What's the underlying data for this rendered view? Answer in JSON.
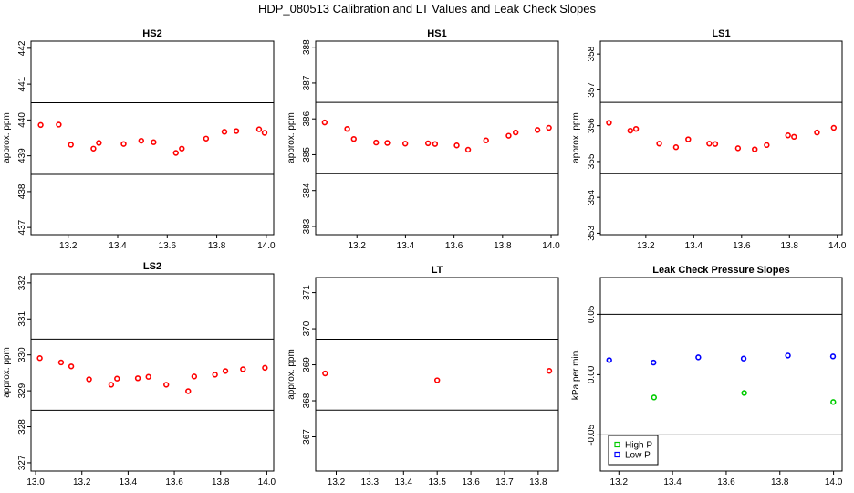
{
  "title": "HDP_080513 Calibration and LT Values and Leak Check Slopes",
  "chart_data": [
    {
      "type": "scatter",
      "title": "HS2",
      "ylabel": "approx. ppm",
      "xlabel": "",
      "xlim": [
        13.05,
        14.03
      ],
      "ylim": [
        436.8,
        442.2
      ],
      "x_ticks": [
        "13.2",
        "13.4",
        "13.6",
        "13.8",
        "14.0"
      ],
      "y_ticks": [
        "437",
        "438",
        "439",
        "440",
        "441",
        "442"
      ],
      "hlines": [
        440.48,
        438.48
      ],
      "series": [
        {
          "color": "#ff0000",
          "x": [
            13.089,
            13.162,
            13.211,
            13.302,
            13.324,
            13.424,
            13.495,
            13.545,
            13.635,
            13.659,
            13.757,
            13.831,
            13.879,
            13.971,
            13.993
          ],
          "y": [
            439.86,
            439.87,
            439.31,
            439.2,
            439.36,
            439.33,
            439.42,
            439.38,
            439.08,
            439.2,
            439.48,
            439.67,
            439.69,
            439.74,
            439.64
          ]
        }
      ]
    },
    {
      "type": "scatter",
      "title": "HS1",
      "ylabel": "approx. ppm",
      "xlabel": "",
      "xlim": [
        13.03,
        14.03
      ],
      "ylim": [
        382.77,
        388.17
      ],
      "x_ticks": [
        "13.2",
        "13.4",
        "13.6",
        "13.8",
        "14.0"
      ],
      "y_ticks": [
        "383",
        "384",
        "385",
        "386",
        "387",
        "388"
      ],
      "hlines": [
        386.46,
        384.47
      ],
      "series": [
        {
          "color": "#ff0000",
          "x": [
            13.067,
            13.16,
            13.187,
            13.279,
            13.325,
            13.399,
            13.493,
            13.522,
            13.611,
            13.658,
            13.732,
            13.825,
            13.854,
            13.944,
            13.991
          ],
          "y": [
            385.9,
            385.72,
            385.44,
            385.34,
            385.33,
            385.31,
            385.32,
            385.3,
            385.26,
            385.14,
            385.4,
            385.53,
            385.62,
            385.69,
            385.75
          ]
        }
      ]
    },
    {
      "type": "scatter",
      "title": "LS1",
      "ylabel": "approx. ppm",
      "xlabel": "",
      "xlim": [
        13.01,
        14.02
      ],
      "ylim": [
        352.96,
        358.36
      ],
      "x_ticks": [
        "13.2",
        "13.4",
        "13.6",
        "13.8",
        "14.0"
      ],
      "y_ticks": [
        "353",
        "354",
        "355",
        "356",
        "357",
        "358"
      ],
      "hlines": [
        356.65,
        354.66
      ],
      "series": [
        {
          "color": "#ff0000",
          "x": [
            13.046,
            13.135,
            13.159,
            13.256,
            13.326,
            13.377,
            13.465,
            13.49,
            13.585,
            13.655,
            13.705,
            13.794,
            13.819,
            13.915,
            13.985
          ],
          "y": [
            356.08,
            355.86,
            355.91,
            355.5,
            355.4,
            355.62,
            355.5,
            355.49,
            355.37,
            355.34,
            355.46,
            355.73,
            355.69,
            355.81,
            355.94
          ]
        }
      ]
    },
    {
      "type": "scatter",
      "title": "LS2",
      "ylabel": "approx. ppm",
      "xlabel": "",
      "xlim": [
        12.98,
        14.03
      ],
      "ylim": [
        326.77,
        332.25
      ],
      "x_ticks": [
        "13.0",
        "13.2",
        "13.4",
        "13.6",
        "13.8",
        "14.0"
      ],
      "y_ticks": [
        "327",
        "328",
        "329",
        "330",
        "331",
        "332"
      ],
      "hlines": [
        330.44,
        328.46
      ],
      "series": [
        {
          "color": "#ff0000",
          "x": [
            13.018,
            13.11,
            13.154,
            13.231,
            13.327,
            13.352,
            13.442,
            13.488,
            13.565,
            13.66,
            13.686,
            13.776,
            13.821,
            13.897,
            13.992
          ],
          "y": [
            329.91,
            329.79,
            329.68,
            329.32,
            329.17,
            329.34,
            329.35,
            329.39,
            329.17,
            328.99,
            329.4,
            329.45,
            329.55,
            329.6,
            329.64
          ]
        }
      ]
    },
    {
      "type": "scatter",
      "title": "LT",
      "ylabel": "approx. ppm",
      "xlabel": "",
      "xlim": [
        13.139,
        13.86
      ],
      "ylim": [
        366.05,
        371.42
      ],
      "x_ticks": [
        "13.2",
        "13.3",
        "13.4",
        "13.5",
        "13.6",
        "13.7",
        "13.8"
      ],
      "y_ticks": [
        "367",
        "368",
        "369",
        "370",
        "371"
      ],
      "hlines": [
        369.71,
        367.74
      ],
      "series": [
        {
          "color": "#ff0000",
          "x": [
            13.167,
            13.5,
            13.833
          ],
          "y": [
            368.76,
            368.57,
            368.83
          ]
        }
      ]
    },
    {
      "type": "scatter",
      "title": "Leak Check Pressure Slopes",
      "ylabel": "kPa per min.",
      "xlabel": "",
      "xlim": [
        13.131,
        14.032
      ],
      "ylim": [
        -0.08,
        0.0806
      ],
      "x_ticks": [
        "13.2",
        "13.4",
        "13.6",
        "13.8",
        "14.0"
      ],
      "y_ticks": [
        "-0.05",
        "0.00",
        "0.05"
      ],
      "hlines": [
        0.05,
        -0.05
      ],
      "legend": {
        "position": "bottom-left"
      },
      "series": [
        {
          "name": "High P",
          "color": "#00cc00",
          "x": [
            13.331,
            13.667,
            13.999
          ],
          "y": [
            -0.0189,
            -0.0152,
            -0.0227
          ]
        },
        {
          "name": "Low P",
          "color": "#0000ff",
          "x": [
            13.164,
            13.329,
            13.496,
            13.665,
            13.83,
            13.998
          ],
          "y": [
            0.0121,
            0.0101,
            0.0144,
            0.0134,
            0.0159,
            0.0152
          ]
        }
      ]
    }
  ]
}
